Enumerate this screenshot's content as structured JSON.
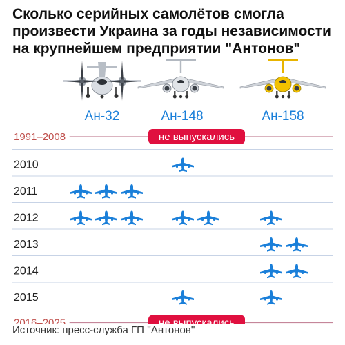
{
  "title_lines": [
    "Сколько серийных самолётов смогла",
    "произвести Украина за годы независимости",
    "на крупнейшем предприятии \"Антонов\""
  ],
  "source": "Источник: пресс-служба ГП ''Антонов''",
  "colors": {
    "accent": "#1a7fd9",
    "band": "#e0103f",
    "band_line": "#c5869a",
    "band_label": "#c0504d",
    "rule": "#c7d3e6",
    "year": "#222222"
  },
  "chart_data": {
    "type": "pictogram",
    "title": "Сколько серийных самолётов смогла произвести Украина за годы независимости на крупнейшем предприятии \"Антонов\"",
    "categories": [
      "Ан-32",
      "Ан-148",
      "Ан-158"
    ],
    "rows": [
      {
        "label": "1991–2008",
        "band": "не выпускались"
      },
      {
        "label": "2010",
        "values": [
          0,
          1,
          0
        ]
      },
      {
        "label": "2011",
        "values": [
          3,
          0,
          0
        ]
      },
      {
        "label": "2012",
        "values": [
          3,
          2,
          1
        ]
      },
      {
        "label": "2013",
        "values": [
          0,
          0,
          2
        ]
      },
      {
        "label": "2014",
        "values": [
          0,
          0,
          2
        ]
      },
      {
        "label": "2015",
        "values": [
          0,
          1,
          1
        ]
      },
      {
        "label": "2016–2025",
        "band": "не выпускались"
      }
    ],
    "aircraft_icons": [
      "an32-aircraft-icon",
      "an148-aircraft-icon",
      "an158-aircraft-icon"
    ],
    "unit_icon": "plane-silhouette-icon"
  }
}
